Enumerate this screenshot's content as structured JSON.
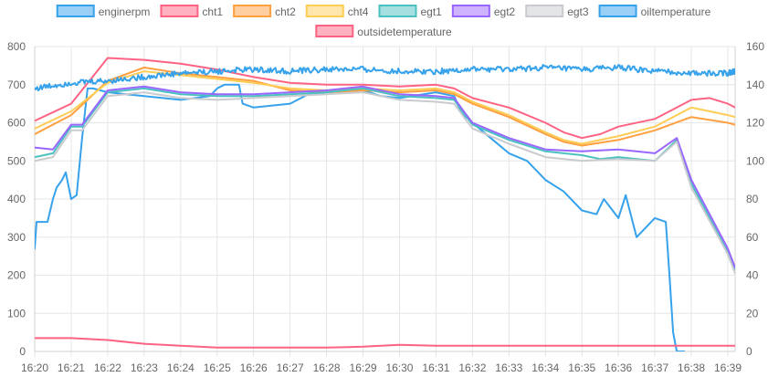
{
  "chart_data": {
    "type": "line",
    "title": "",
    "xlabel": "",
    "ylabel": "",
    "y_left": {
      "min": 0,
      "max": 800,
      "ticks": [
        0,
        100,
        200,
        300,
        400,
        500,
        600,
        700,
        800
      ]
    },
    "y_right": {
      "min": 0,
      "max": 160,
      "ticks": [
        0,
        20,
        40,
        60,
        80,
        100,
        120,
        140,
        160
      ]
    },
    "x_ticks": [
      "16:20",
      "16:21",
      "16:22",
      "16:23",
      "16:24",
      "16:25",
      "16:26",
      "16:27",
      "16:28",
      "16:29",
      "16:30",
      "16:31",
      "16:32",
      "16:33",
      "16:34",
      "16:35",
      "16:36",
      "16:37",
      "16:38",
      "16:39"
    ],
    "x_range_minutes": [
      0,
      19.2
    ],
    "grid": true,
    "legend_position": "top",
    "series": [
      {
        "name": "enginerpm",
        "color": "#36a2eb",
        "fill": "#9ad0f5",
        "axis": "right",
        "noise": 0,
        "points": [
          [
            0,
            54
          ],
          [
            0.05,
            68
          ],
          [
            0.35,
            68
          ],
          [
            0.5,
            80
          ],
          [
            0.6,
            86
          ],
          [
            0.75,
            90
          ],
          [
            0.85,
            94
          ],
          [
            1,
            80
          ],
          [
            1.15,
            82
          ],
          [
            1.3,
            112
          ],
          [
            1.45,
            138
          ],
          [
            1.6,
            138
          ],
          [
            2,
            136
          ],
          [
            3,
            134
          ],
          [
            4,
            132
          ],
          [
            4.8,
            134
          ],
          [
            5,
            138
          ],
          [
            5.2,
            140
          ],
          [
            5.6,
            140
          ],
          [
            5.7,
            130
          ],
          [
            6,
            128
          ],
          [
            7,
            130
          ],
          [
            7.5,
            135
          ],
          [
            8,
            136
          ],
          [
            9,
            137
          ],
          [
            9.5,
            134
          ],
          [
            10,
            133
          ],
          [
            11,
            136
          ],
          [
            11.5,
            134
          ],
          [
            11.7,
            125
          ],
          [
            12,
            120
          ],
          [
            12.5,
            112
          ],
          [
            13,
            104
          ],
          [
            13.5,
            100
          ],
          [
            14,
            90
          ],
          [
            14.5,
            84
          ],
          [
            15,
            74
          ],
          [
            15.4,
            72
          ],
          [
            15.6,
            80
          ],
          [
            16,
            70
          ],
          [
            16.2,
            82
          ],
          [
            16.5,
            60
          ],
          [
            17,
            70
          ],
          [
            17.3,
            68
          ],
          [
            17.4,
            40
          ],
          [
            17.5,
            10
          ],
          [
            17.6,
            0
          ],
          [
            17.8,
            0
          ]
        ]
      },
      {
        "name": "cht1",
        "color": "#ff6384",
        "fill": "#ffb1c1",
        "axis": "left",
        "noise": 0,
        "points": [
          [
            0,
            605
          ],
          [
            1,
            650
          ],
          [
            2,
            770
          ],
          [
            3,
            765
          ],
          [
            4,
            755
          ],
          [
            5,
            740
          ],
          [
            6,
            720
          ],
          [
            7,
            705
          ],
          [
            8,
            700
          ],
          [
            9,
            700
          ],
          [
            10,
            695
          ],
          [
            11,
            700
          ],
          [
            11.5,
            690
          ],
          [
            12,
            665
          ],
          [
            13,
            640
          ],
          [
            14,
            600
          ],
          [
            14.5,
            575
          ],
          [
            15,
            560
          ],
          [
            15.5,
            570
          ],
          [
            16,
            590
          ],
          [
            17,
            610
          ],
          [
            18,
            660
          ],
          [
            18.5,
            665
          ],
          [
            19,
            650
          ],
          [
            19.2,
            640
          ]
        ]
      },
      {
        "name": "cht2",
        "color": "#ff9f40",
        "fill": "#ffcf9f",
        "axis": "left",
        "noise": 0,
        "points": [
          [
            0,
            570
          ],
          [
            1,
            620
          ],
          [
            2,
            710
          ],
          [
            3,
            745
          ],
          [
            4,
            730
          ],
          [
            5,
            720
          ],
          [
            6,
            710
          ],
          [
            7,
            685
          ],
          [
            8,
            680
          ],
          [
            9,
            685
          ],
          [
            10,
            680
          ],
          [
            11,
            685
          ],
          [
            11.5,
            675
          ],
          [
            12,
            650
          ],
          [
            13,
            615
          ],
          [
            14,
            570
          ],
          [
            14.5,
            550
          ],
          [
            15,
            540
          ],
          [
            16,
            555
          ],
          [
            17,
            580
          ],
          [
            18,
            615
          ],
          [
            19,
            600
          ],
          [
            19.2,
            595
          ]
        ]
      },
      {
        "name": "cht4",
        "color": "#ffcd56",
        "fill": "#ffe6aa",
        "axis": "left",
        "noise": 0,
        "points": [
          [
            0,
            585
          ],
          [
            1,
            630
          ],
          [
            2,
            705
          ],
          [
            3,
            735
          ],
          [
            4,
            725
          ],
          [
            5,
            715
          ],
          [
            6,
            705
          ],
          [
            7,
            690
          ],
          [
            8,
            685
          ],
          [
            9,
            690
          ],
          [
            10,
            685
          ],
          [
            11,
            690
          ],
          [
            11.5,
            680
          ],
          [
            12,
            655
          ],
          [
            13,
            620
          ],
          [
            14,
            575
          ],
          [
            14.5,
            555
          ],
          [
            15,
            545
          ],
          [
            16,
            565
          ],
          [
            17,
            590
          ],
          [
            18,
            640
          ],
          [
            19,
            620
          ],
          [
            19.2,
            615
          ]
        ]
      },
      {
        "name": "egt1",
        "color": "#4bc0c0",
        "fill": "#a5dfdf",
        "axis": "left",
        "noise": 0,
        "points": [
          [
            0,
            510
          ],
          [
            0.5,
            520
          ],
          [
            1,
            590
          ],
          [
            1.3,
            590
          ],
          [
            2,
            680
          ],
          [
            3,
            690
          ],
          [
            4,
            675
          ],
          [
            5,
            670
          ],
          [
            6,
            670
          ],
          [
            7,
            675
          ],
          [
            8,
            680
          ],
          [
            9,
            690
          ],
          [
            10,
            670
          ],
          [
            11,
            665
          ],
          [
            11.5,
            660
          ],
          [
            11.8,
            620
          ],
          [
            12,
            595
          ],
          [
            13,
            555
          ],
          [
            14,
            525
          ],
          [
            15,
            515
          ],
          [
            15.5,
            505
          ],
          [
            16,
            510
          ],
          [
            17,
            500
          ],
          [
            17.6,
            555
          ],
          [
            18,
            440
          ],
          [
            19,
            260
          ],
          [
            19.2,
            210
          ]
        ]
      },
      {
        "name": "egt2",
        "color": "#9966ff",
        "fill": "#ccb2ff",
        "axis": "left",
        "noise": 0,
        "points": [
          [
            0,
            535
          ],
          [
            0.5,
            530
          ],
          [
            1,
            595
          ],
          [
            1.3,
            595
          ],
          [
            2,
            685
          ],
          [
            3,
            695
          ],
          [
            4,
            680
          ],
          [
            5,
            675
          ],
          [
            6,
            675
          ],
          [
            7,
            680
          ],
          [
            8,
            685
          ],
          [
            9,
            695
          ],
          [
            10,
            675
          ],
          [
            11,
            670
          ],
          [
            11.5,
            665
          ],
          [
            11.8,
            625
          ],
          [
            12,
            600
          ],
          [
            13,
            560
          ],
          [
            14,
            530
          ],
          [
            15,
            525
          ],
          [
            16,
            530
          ],
          [
            17,
            520
          ],
          [
            17.6,
            560
          ],
          [
            18,
            450
          ],
          [
            19,
            270
          ],
          [
            19.2,
            220
          ]
        ]
      },
      {
        "name": "egt3",
        "color": "#c9cbcf",
        "fill": "#e4e5e7",
        "axis": "left",
        "noise": 0,
        "points": [
          [
            0,
            500
          ],
          [
            0.5,
            510
          ],
          [
            1,
            580
          ],
          [
            1.3,
            580
          ],
          [
            2,
            670
          ],
          [
            3,
            680
          ],
          [
            4,
            665
          ],
          [
            5,
            660
          ],
          [
            6,
            665
          ],
          [
            7,
            670
          ],
          [
            8,
            675
          ],
          [
            9,
            680
          ],
          [
            10,
            660
          ],
          [
            11,
            655
          ],
          [
            11.5,
            650
          ],
          [
            11.8,
            610
          ],
          [
            12,
            585
          ],
          [
            13,
            545
          ],
          [
            14,
            510
          ],
          [
            15,
            500
          ],
          [
            16,
            505
          ],
          [
            17,
            500
          ],
          [
            17.6,
            550
          ],
          [
            18,
            430
          ],
          [
            19,
            255
          ],
          [
            19.2,
            205
          ]
        ]
      },
      {
        "name": "oiltemperature",
        "color": "#36a2eb",
        "fill": "#9ad0f5",
        "axis": "right",
        "noise": 1.5,
        "points": [
          [
            0,
            138
          ],
          [
            1,
            141
          ],
          [
            2,
            142
          ],
          [
            3,
            144
          ],
          [
            4,
            146
          ],
          [
            5,
            147
          ],
          [
            6,
            148
          ],
          [
            7,
            147
          ],
          [
            8,
            148
          ],
          [
            9,
            148
          ],
          [
            10,
            147
          ],
          [
            11,
            147
          ],
          [
            12,
            148
          ],
          [
            13,
            148
          ],
          [
            14,
            149
          ],
          [
            15,
            148
          ],
          [
            16,
            149
          ],
          [
            17,
            147
          ],
          [
            18,
            146
          ],
          [
            19,
            146
          ],
          [
            19.2,
            147
          ]
        ]
      },
      {
        "name": "outsidetemperature",
        "color": "#ff6384",
        "fill": "#ffb1c1",
        "axis": "right",
        "noise": 0,
        "points": [
          [
            0,
            7
          ],
          [
            1,
            7
          ],
          [
            2,
            6
          ],
          [
            3,
            4
          ],
          [
            4,
            3
          ],
          [
            5,
            2
          ],
          [
            6,
            2
          ],
          [
            7,
            2
          ],
          [
            8,
            2
          ],
          [
            9,
            2.5
          ],
          [
            10,
            3.5
          ],
          [
            11,
            3
          ],
          [
            12,
            3
          ],
          [
            13,
            3
          ],
          [
            14,
            3
          ],
          [
            15,
            3
          ],
          [
            16,
            3
          ],
          [
            17,
            3
          ],
          [
            18,
            3
          ],
          [
            19.2,
            3
          ]
        ]
      }
    ]
  }
}
